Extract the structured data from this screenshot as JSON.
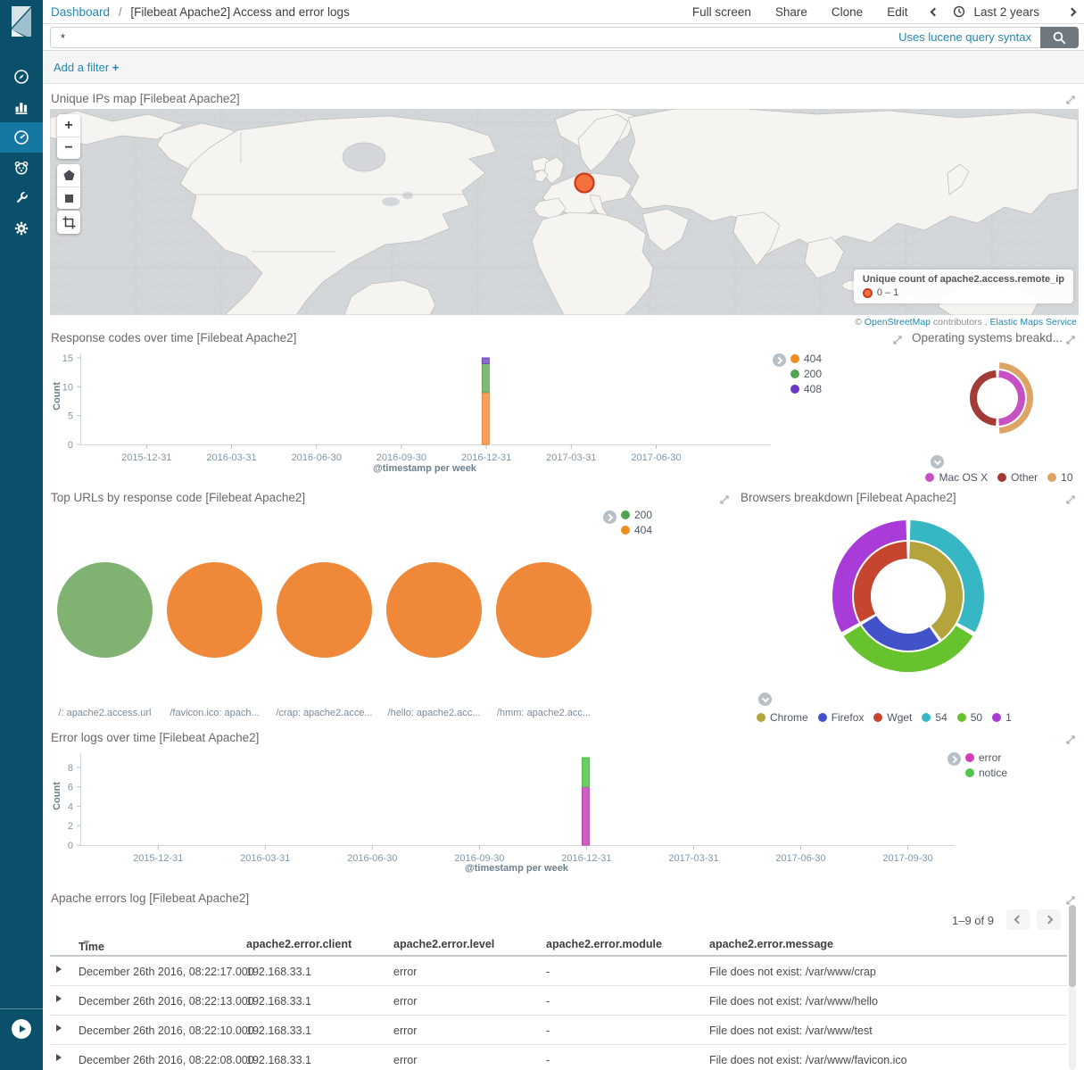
{
  "colors": {
    "sidebar_bg": "#0a506b",
    "sidebar_active_bg": "#1478a2",
    "link": "#2287ad",
    "border": "#d9d9d9",
    "marker_fill": "#f4713f",
    "marker_border": "#c93a1c"
  },
  "sidebar": {
    "items": [
      {
        "icon": "compass-icon",
        "active": false
      },
      {
        "icon": "bar-chart-icon",
        "active": false
      },
      {
        "icon": "dashboard-icon",
        "active": true
      },
      {
        "icon": "timelion-icon",
        "active": false
      },
      {
        "icon": "wrench-icon",
        "active": false
      },
      {
        "icon": "gear-icon",
        "active": false
      }
    ],
    "collapse_icon": "collapse-sidebar-icon"
  },
  "header": {
    "breadcrumb": "Dashboard",
    "separator": "/",
    "title": "[Filebeat Apache2] Access and error logs",
    "actions": [
      "Full screen",
      "Share",
      "Clone",
      "Edit"
    ],
    "time_range": "Last 2 years"
  },
  "query": {
    "value": "*",
    "syntax_link": "Uses lucene query syntax"
  },
  "filter_bar": {
    "label": "Add a filter ",
    "plus": "+"
  },
  "panels": {
    "map": {
      "title": "Unique IPs map [Filebeat Apache2]",
      "controls": {
        "zoom_in": "+",
        "zoom_out": "−",
        "tools": [
          "polygon-icon",
          "rectangle-icon",
          "crop-icon"
        ]
      },
      "legend_title": "Unique count of apache2.access.remote_ip",
      "legend_range": "0 – 1",
      "attribution": {
        "copy": "© ",
        "osm": "OpenStreetMap",
        "mid": " contributors , ",
        "ems": "Elastic Maps Service"
      }
    },
    "response_codes": {
      "title": "Response codes over time [Filebeat Apache2]"
    },
    "os_breakdown": {
      "title": "Operating systems breakd..."
    },
    "top_urls": {
      "title": "Top URLs by response code [Filebeat Apache2]"
    },
    "browsers": {
      "title": "Browsers breakdown [Filebeat Apache2]"
    },
    "error_logs": {
      "title": "Error logs over time [Filebeat Apache2]"
    },
    "errors_log_table": {
      "title": "Apache errors log [Filebeat Apache2]",
      "pagination": "1–9 of 9",
      "columns": [
        "Time",
        "apache2.error.client",
        "apache2.error.level",
        "apache2.error.module",
        "apache2.error.message"
      ],
      "rows": [
        {
          "time": "December 26th 2016, 08:22:17.000",
          "client": "192.168.33.1",
          "level": "error",
          "module": "-",
          "message": "File does not exist: /var/www/crap"
        },
        {
          "time": "December 26th 2016, 08:22:13.000",
          "client": "192.168.33.1",
          "level": "error",
          "module": "-",
          "message": "File does not exist: /var/www/hello"
        },
        {
          "time": "December 26th 2016, 08:22:10.000",
          "client": "192.168.33.1",
          "level": "error",
          "module": "-",
          "message": "File does not exist: /var/www/test"
        },
        {
          "time": "December 26th 2016, 08:22:08.000",
          "client": "192.168.33.1",
          "level": "error",
          "module": "-",
          "message": "File does not exist: /var/www/favicon.ico"
        }
      ]
    }
  },
  "chart_data": [
    {
      "id": "response_codes",
      "type": "bar",
      "title": "Response codes over time [Filebeat Apache2]",
      "xlabel": "@timestamp per week",
      "ylabel": "Count",
      "ylim": [
        0,
        15
      ],
      "y_ticks": [
        0,
        5,
        10,
        15
      ],
      "x_ticks": [
        "2015-12-31",
        "2016-03-31",
        "2016-06-30",
        "2016-09-30",
        "2016-12-31",
        "2017-03-31",
        "2017-06-30"
      ],
      "tick_start_frac": 0.096,
      "tick_step_frac": 0.123,
      "legend": [
        {
          "label": "404",
          "color": "#ee8c1e"
        },
        {
          "label": "200",
          "color": "#4fa44f"
        },
        {
          "label": "408",
          "color": "#6a38c2"
        }
      ],
      "bars": [
        {
          "x": "2016-12-26",
          "x_frac": 0.587,
          "stack": [
            {
              "label": "404",
              "value": 9,
              "color": "#f6a05c",
              "border": "#e8883f"
            },
            {
              "label": "200",
              "value": 5,
              "color": "#81b778",
              "border": "#69a45e"
            },
            {
              "label": "408",
              "value": 1,
              "color": "#8a68ce",
              "border": "#6e4cb4"
            }
          ]
        }
      ]
    },
    {
      "id": "os_breakdown",
      "type": "donut",
      "title": "Operating systems breakdown",
      "gap": 0.06,
      "radii": [
        [
          23,
          31
        ],
        [
          33,
          40
        ]
      ],
      "legend": [
        {
          "label": "Mac OS X",
          "color": "#c750c2"
        },
        {
          "label": "Other",
          "color": "#a23b36"
        },
        {
          "label": "10",
          "color": "#dca465"
        }
      ],
      "rings": [
        {
          "segments": [
            {
              "label": "Mac OS X",
              "value": 5,
              "color": "#c750c2"
            },
            {
              "label": "Other",
              "value": 5,
              "color": "#a23b36"
            }
          ]
        },
        {
          "segments": [
            {
              "label": "10",
              "value": 5,
              "color": "#dca465"
            },
            {
              "label": "",
              "value": 5,
              "color": "none"
            }
          ]
        }
      ]
    },
    {
      "id": "top_urls",
      "type": "pie",
      "title": "Top URLs by response code [Filebeat Apache2]",
      "legend": [
        {
          "label": "200",
          "color": "#4fa44f"
        },
        {
          "label": "404",
          "color": "#ee8c1e"
        }
      ],
      "pies": [
        {
          "label": "/: apache2.access.url",
          "slices": [
            {
              "label": "200",
              "value": 1,
              "color": "#80b271"
            }
          ]
        },
        {
          "label": "/favicon.ico: apach...",
          "slices": [
            {
              "label": "404",
              "value": 1,
              "color": "#ef8838"
            }
          ]
        },
        {
          "label": "/crap: apache2.acce...",
          "slices": [
            {
              "label": "404",
              "value": 1,
              "color": "#ef8838"
            }
          ]
        },
        {
          "label": "/hello: apache2.acc...",
          "slices": [
            {
              "label": "404",
              "value": 1,
              "color": "#ef8838"
            }
          ]
        },
        {
          "label": "/hmm: apache2.acc...",
          "slices": [
            {
              "label": "404",
              "value": 1,
              "color": "#ef8838"
            }
          ]
        }
      ]
    },
    {
      "id": "browsers",
      "type": "donut",
      "title": "Browsers breakdown [Filebeat Apache2]",
      "gap": 0.03,
      "radii": [
        [
          42,
          61
        ],
        [
          63,
          85
        ]
      ],
      "legend": [
        {
          "label": "Chrome",
          "color": "#b5a33c"
        },
        {
          "label": "Firefox",
          "color": "#4252c9"
        },
        {
          "label": "Wget",
          "color": "#c5452e"
        },
        {
          "label": "54",
          "color": "#36b7c3"
        },
        {
          "label": "50",
          "color": "#66c32d"
        },
        {
          "label": "1",
          "color": "#a93bd8"
        }
      ],
      "rings": [
        {
          "segments": [
            {
              "label": "Chrome",
              "value": 6,
              "color": "#b5a33c"
            },
            {
              "label": "Firefox",
              "value": 4,
              "color": "#4252c9"
            },
            {
              "label": "Wget",
              "value": 5,
              "color": "#c5452e"
            }
          ]
        },
        {
          "segments": [
            {
              "label": "54",
              "value": 5,
              "color": "#36b7c3"
            },
            {
              "label": "50",
              "value": 5,
              "color": "#66c32d"
            },
            {
              "label": "1",
              "value": 5,
              "color": "#a93bd8"
            }
          ]
        }
      ]
    },
    {
      "id": "error_logs",
      "type": "bar",
      "title": "Error logs over time [Filebeat Apache2]",
      "xlabel": "@timestamp per week",
      "ylabel": "Count",
      "ylim": [
        0,
        9
      ],
      "y_ticks": [
        0,
        2,
        4,
        6,
        8
      ],
      "x_ticks": [
        "2015-12-31",
        "2016-03-31",
        "2016-06-30",
        "2016-09-30",
        "2016-12-31",
        "2017-03-31",
        "2017-06-30",
        "2017-09-30"
      ],
      "tick_start_frac": 0.089,
      "tick_step_frac": 0.1225,
      "legend": [
        {
          "label": "error",
          "color": "#d13dbd"
        },
        {
          "label": "notice",
          "color": "#4fc64f"
        }
      ],
      "bars": [
        {
          "x": "2016-12-26",
          "x_frac": 0.578,
          "stack": [
            {
              "label": "error",
              "value": 6,
              "color": "#cd5ec2",
              "border": "#b845ab"
            },
            {
              "label": "notice",
              "value": 3,
              "color": "#6ecb68",
              "border": "#54b54e"
            }
          ]
        }
      ]
    }
  ]
}
